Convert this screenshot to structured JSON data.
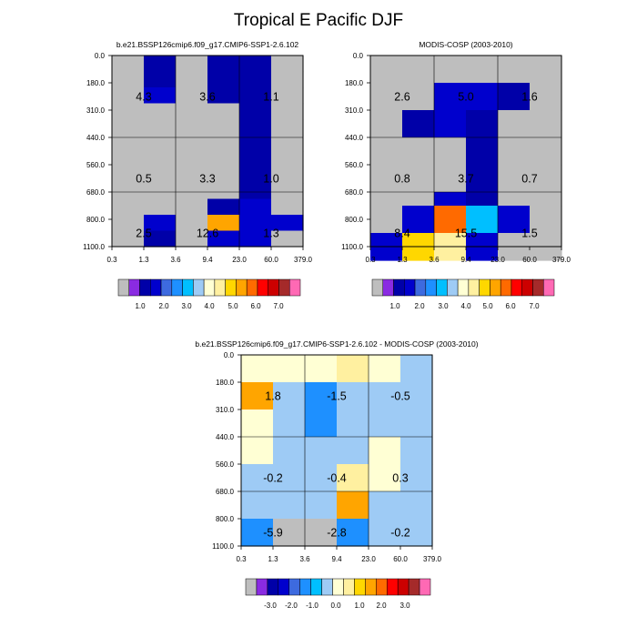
{
  "title": "Tropical E Pacific DJF",
  "y_ticks": [
    "0.0",
    "180.0",
    "310.0",
    "440.0",
    "560.0",
    "680.0",
    "800.0",
    "1100.0"
  ],
  "x_ticks": [
    "0.3",
    "1.3",
    "3.6",
    "9.4",
    "23.0",
    "60.0",
    "379.0"
  ],
  "chart_data": [
    {
      "type": "heatmap",
      "id": "model",
      "title": "b.e21.BSSP126cmip6.f09_g17.CMIP6-SSP1-2.6.102",
      "palette": "absolute",
      "levels": [
        0.2,
        0.5,
        1.0,
        1.5,
        2.0,
        2.5,
        3.0,
        3.5,
        4.0,
        4.5,
        5.0,
        5.5,
        6.0,
        6.5,
        7.0
      ],
      "values": [
        [
          0.0,
          0.6,
          0.1,
          0.6,
          0.6,
          0.0
        ],
        [
          0.0,
          0.6,
          0.1,
          0.6,
          0.6,
          0.0
        ],
        [
          0.0,
          1.3,
          0.1,
          0.6,
          0.6,
          0.0
        ],
        [
          0.0,
          0.0,
          0.1,
          0.0,
          0.6,
          0.0
        ],
        [
          0.0,
          0.0,
          0.1,
          0.0,
          0.6,
          0.0
        ],
        [
          0.0,
          0.0,
          0.1,
          0.0,
          0.6,
          0.0
        ],
        [
          0.0,
          0.0,
          0.1,
          0.0,
          0.6,
          0.0
        ],
        [
          0.0,
          0.0,
          0.0,
          0.0,
          0.6,
          0.0
        ],
        [
          0.0,
          0.0,
          0.0,
          0.0,
          0.6,
          0.0
        ],
        [
          0.0,
          0.0,
          0.0,
          0.6,
          1.3,
          0.0
        ],
        [
          0.0,
          1.3,
          0.0,
          5.3,
          1.3,
          1.3
        ],
        [
          0.0,
          0.6,
          0.0,
          1.3,
          1.3,
          0.0
        ]
      ],
      "labels": [
        {
          "row": 1,
          "col": 0,
          "text": "4.3"
        },
        {
          "row": 1,
          "col": 2,
          "text": "3.6"
        },
        {
          "row": 1,
          "col": 4,
          "text": "1.1"
        },
        {
          "row": 4,
          "col": 0,
          "text": "0.5"
        },
        {
          "row": 4,
          "col": 2,
          "text": "3.3"
        },
        {
          "row": 4,
          "col": 4,
          "text": "1.0"
        },
        {
          "row": 6,
          "col": 0,
          "text": "2.5"
        },
        {
          "row": 6,
          "col": 2,
          "text": "12.6"
        },
        {
          "row": 6,
          "col": 4,
          "text": "1.3"
        }
      ]
    },
    {
      "type": "heatmap",
      "id": "obs",
      "title": "MODIS-COSP (2003-2010)",
      "palette": "absolute",
      "levels": [
        0.2,
        0.5,
        1.0,
        1.5,
        2.0,
        2.5,
        3.0,
        3.5,
        4.0,
        4.5,
        5.0,
        5.5,
        6.0,
        6.5,
        7.0
      ],
      "values": [
        [
          0.0,
          0.0,
          0.0,
          0.0,
          0.0,
          0.0
        ],
        [
          0.0,
          0.0,
          1.3,
          1.3,
          0.6,
          0.0
        ],
        [
          0.0,
          0.6,
          1.3,
          0.6,
          0.0,
          0.0
        ],
        [
          0.0,
          0.0,
          0.0,
          0.6,
          0.0,
          0.0
        ],
        [
          0.0,
          0.0,
          0.0,
          0.6,
          0.0,
          0.0
        ],
        [
          0.0,
          0.0,
          1.3,
          0.6,
          0.0,
          0.0
        ],
        [
          0.0,
          1.3,
          5.8,
          2.8,
          1.3,
          0.0
        ],
        [
          1.3,
          4.8,
          4.3,
          1.3,
          0.0,
          0.0
        ]
      ],
      "row_spans": [
        [
          0,
          1
        ],
        [
          1,
          2
        ],
        [
          2,
          3
        ],
        [
          3,
          4
        ],
        [
          4,
          5
        ],
        [
          5,
          5.5
        ],
        [
          5.5,
          6.5
        ],
        [
          6.5,
          7.5
        ]
      ],
      "labels": [
        {
          "row": 1,
          "col": 0,
          "text": "2.6"
        },
        {
          "row": 1,
          "col": 2,
          "text": "5.0"
        },
        {
          "row": 1,
          "col": 4,
          "text": "1.6"
        },
        {
          "row": 4,
          "col": 0,
          "text": "0.8"
        },
        {
          "row": 4,
          "col": 2,
          "text": "3.7"
        },
        {
          "row": 4,
          "col": 4,
          "text": "0.7"
        },
        {
          "row": 6,
          "col": 0,
          "text": "8.4"
        },
        {
          "row": 6,
          "col": 2,
          "text": "15.5"
        },
        {
          "row": 6,
          "col": 4,
          "text": "1.5"
        }
      ]
    },
    {
      "type": "heatmap",
      "id": "diff",
      "title": "b.e21.BSSP126cmip6.f09_g17.CMIP6-SSP1-2.6.102 - MODIS-COSP (2003-2010)",
      "palette": "difference",
      "levels": [
        -3.5,
        -3.0,
        -2.5,
        -2.0,
        -1.5,
        -1.0,
        -0.5,
        0.0,
        0.5,
        1.0,
        1.5,
        2.0,
        2.5,
        3.0,
        3.5
      ],
      "values": [
        [
          0.2,
          0.1,
          0.1,
          0.7,
          0.1,
          -0.2
        ],
        [
          1.7,
          -0.2,
          -1.1,
          -0.2,
          -0.2,
          -0.2
        ],
        [
          0.2,
          -0.2,
          -1.1,
          -0.2,
          -0.2,
          -0.2
        ],
        [
          0.2,
          -0.2,
          -0.2,
          -0.2,
          0.1,
          -0.2
        ],
        [
          -0.2,
          -0.2,
          -0.2,
          0.7,
          0.1,
          -0.2
        ],
        [
          -0.2,
          -0.2,
          -0.2,
          1.7,
          -0.2,
          -0.2
        ],
        [
          -1.3,
          -9.0,
          -9.0,
          -1.1,
          -0.2,
          -0.2
        ]
      ],
      "row_spans": [
        [
          0,
          1
        ],
        [
          1,
          2
        ],
        [
          2,
          3
        ],
        [
          3,
          4
        ],
        [
          4,
          5
        ],
        [
          5,
          6
        ],
        [
          6,
          7
        ]
      ],
      "labels": [
        {
          "row": 1,
          "col": 0,
          "text": "1.8"
        },
        {
          "row": 1,
          "col": 2,
          "text": "-1.5"
        },
        {
          "row": 1,
          "col": 4,
          "text": "-0.5"
        },
        {
          "row": 4,
          "col": 0,
          "text": "-0.2"
        },
        {
          "row": 4,
          "col": 2,
          "text": "-0.4"
        },
        {
          "row": 4,
          "col": 4,
          "text": "0.3"
        },
        {
          "row": 6,
          "col": 0,
          "text": "-5.9"
        },
        {
          "row": 6,
          "col": 2,
          "text": "-2.8"
        },
        {
          "row": 6,
          "col": 4,
          "text": "-0.2"
        }
      ]
    }
  ],
  "colorbars": [
    {
      "id": "model",
      "labels": [
        "1.0",
        "2.0",
        "3.0",
        "4.0",
        "5.0",
        "6.0",
        "7.0"
      ]
    },
    {
      "id": "obs",
      "labels": [
        "1.0",
        "2.0",
        "3.0",
        "4.0",
        "5.0",
        "6.0",
        "7.0"
      ]
    },
    {
      "id": "diff",
      "labels": [
        "-3.0",
        "-2.0",
        "-1.0",
        "0.0",
        "1.0",
        "2.0",
        "3.0"
      ]
    }
  ],
  "colors": {
    "missing": "#bebebe",
    "palette": [
      "#bebebe",
      "#8a2be2",
      "#0000a8",
      "#0000cd",
      "#3d6adf",
      "#1e90ff",
      "#00bfff",
      "#9ecbf5",
      "#ffffd4",
      "#fff0a0",
      "#ffd700",
      "#ffa500",
      "#ff6a00",
      "#ff0000",
      "#cc0000",
      "#a52a2a",
      "#ff69b4"
    ]
  }
}
